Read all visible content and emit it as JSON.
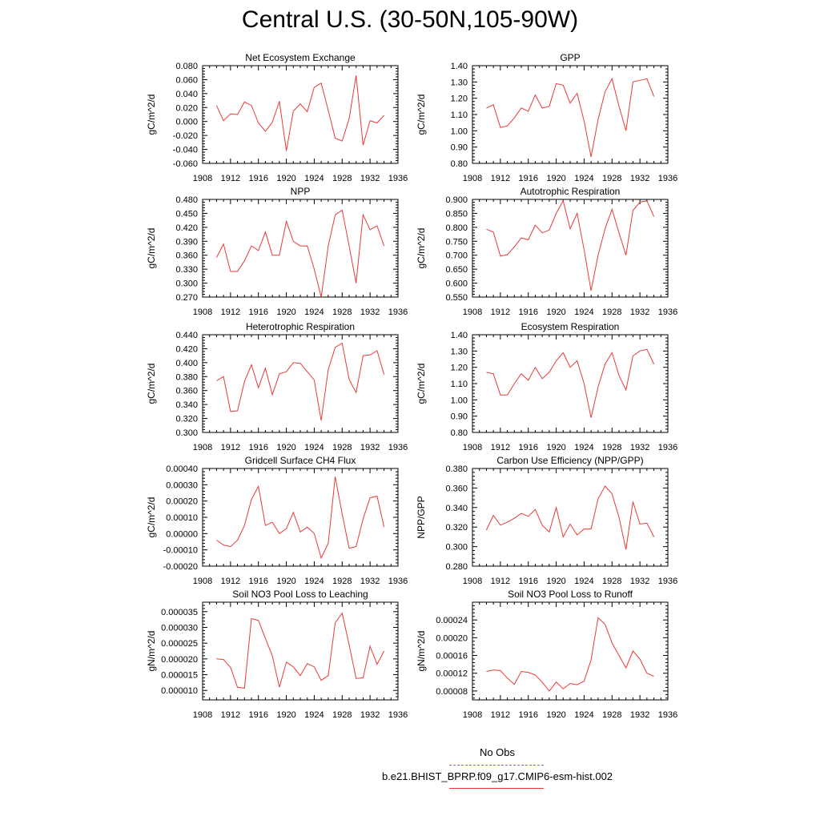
{
  "title": "Central U.S. (30-50N,105-90W)",
  "legend": {
    "obs_label": "No Obs",
    "model_label": "b.e21.BHIST_BPRP.f09_g17.CMIP6-esm-hist.002",
    "obs_color": "#6a6ae8",
    "model_color": "#e83a3a"
  },
  "chart_data": [
    {
      "type": "line",
      "title": "Net Ecosystem Exchange",
      "ylabel": "gC/m^2/d",
      "xlim": [
        1908,
        1936
      ],
      "ylim": [
        -0.06,
        0.08
      ],
      "yticks": [
        "-0.060",
        "-0.040",
        "-0.020",
        "0.000",
        "0.020",
        "0.040",
        "0.060",
        "0.080"
      ],
      "xticks": [
        "1908",
        "1912",
        "1916",
        "1920",
        "1924",
        "1928",
        "1932",
        "1936"
      ],
      "series": [
        {
          "x": [
            1910,
            1911,
            1912,
            1913,
            1914,
            1915,
            1916,
            1917,
            1918,
            1919,
            1920,
            1921,
            1922,
            1923,
            1924,
            1925,
            1926,
            1927,
            1928,
            1929,
            1930,
            1931,
            1932,
            1933,
            1934
          ],
          "values": [
            0.023,
            0.001,
            0.011,
            0.01,
            0.028,
            0.023,
            -0.002,
            -0.014,
            -0.001,
            0.029,
            -0.042,
            0.015,
            0.025,
            0.014,
            0.049,
            0.055,
            0.016,
            -0.024,
            -0.028,
            0.004,
            0.066,
            -0.034,
            0.001,
            -0.002,
            0.009
          ]
        }
      ]
    },
    {
      "type": "line",
      "title": "GPP",
      "ylabel": "gC/m^2/d",
      "xlim": [
        1908,
        1936
      ],
      "ylim": [
        0.8,
        1.4
      ],
      "yticks": [
        "0.80",
        "0.90",
        "1.00",
        "1.10",
        "1.20",
        "1.30",
        "1.40"
      ],
      "xticks": [
        "1908",
        "1912",
        "1916",
        "1920",
        "1924",
        "1928",
        "1932",
        "1936"
      ],
      "series": [
        {
          "x": [
            1910,
            1911,
            1912,
            1913,
            1914,
            1915,
            1916,
            1917,
            1918,
            1919,
            1920,
            1921,
            1922,
            1923,
            1924,
            1925,
            1926,
            1927,
            1928,
            1929,
            1930,
            1931,
            1932,
            1933,
            1934
          ],
          "values": [
            1.14,
            1.16,
            1.02,
            1.03,
            1.08,
            1.14,
            1.12,
            1.22,
            1.14,
            1.15,
            1.29,
            1.28,
            1.17,
            1.23,
            1.06,
            0.84,
            1.07,
            1.24,
            1.32,
            1.15,
            1.0,
            1.3,
            1.31,
            1.32,
            1.21
          ]
        }
      ]
    },
    {
      "type": "line",
      "title": "NPP",
      "ylabel": "gC/m^2/d",
      "xlim": [
        1908,
        1936
      ],
      "ylim": [
        0.27,
        0.48
      ],
      "yticks": [
        "0.270",
        "0.300",
        "0.330",
        "0.360",
        "0.390",
        "0.420",
        "0.450",
        "0.480"
      ],
      "xticks": [
        "1908",
        "1912",
        "1916",
        "1920",
        "1924",
        "1928",
        "1932",
        "1936"
      ],
      "series": [
        {
          "x": [
            1910,
            1911,
            1912,
            1913,
            1914,
            1915,
            1916,
            1917,
            1918,
            1919,
            1920,
            1921,
            1922,
            1923,
            1924,
            1925,
            1926,
            1927,
            1928,
            1929,
            1930,
            1931,
            1932,
            1933,
            1934
          ],
          "values": [
            0.355,
            0.384,
            0.325,
            0.325,
            0.348,
            0.38,
            0.37,
            0.41,
            0.36,
            0.36,
            0.433,
            0.39,
            0.38,
            0.38,
            0.33,
            0.27,
            0.38,
            0.447,
            0.457,
            0.38,
            0.3,
            0.447,
            0.415,
            0.423,
            0.38
          ]
        }
      ]
    },
    {
      "type": "line",
      "title": "Autotrophic Respiration",
      "ylabel": "gC/m^2/d",
      "xlim": [
        1908,
        1936
      ],
      "ylim": [
        0.55,
        0.9
      ],
      "yticks": [
        "0.550",
        "0.600",
        "0.650",
        "0.700",
        "0.750",
        "0.800",
        "0.850",
        "0.900"
      ],
      "xticks": [
        "1908",
        "1912",
        "1916",
        "1920",
        "1924",
        "1928",
        "1932",
        "1936"
      ],
      "series": [
        {
          "x": [
            1910,
            1911,
            1912,
            1913,
            1914,
            1915,
            1916,
            1917,
            1918,
            1919,
            1920,
            1921,
            1922,
            1923,
            1924,
            1925,
            1926,
            1927,
            1928,
            1929,
            1930,
            1931,
            1932,
            1933,
            1934
          ],
          "values": [
            0.793,
            0.783,
            0.697,
            0.702,
            0.73,
            0.762,
            0.755,
            0.808,
            0.78,
            0.79,
            0.85,
            0.895,
            0.795,
            0.85,
            0.72,
            0.573,
            0.7,
            0.795,
            0.865,
            0.78,
            0.7,
            0.86,
            0.89,
            0.895,
            0.838
          ]
        }
      ]
    },
    {
      "type": "line",
      "title": "Heterotrophic Respiration",
      "ylabel": "gC/m^2/d",
      "xlim": [
        1908,
        1936
      ],
      "ylim": [
        0.3,
        0.44
      ],
      "yticks": [
        "0.300",
        "0.320",
        "0.340",
        "0.360",
        "0.380",
        "0.400",
        "0.420",
        "0.440"
      ],
      "xticks": [
        "1908",
        "1912",
        "1916",
        "1920",
        "1924",
        "1928",
        "1932",
        "1936"
      ],
      "series": [
        {
          "x": [
            1910,
            1911,
            1912,
            1913,
            1914,
            1915,
            1916,
            1917,
            1918,
            1919,
            1920,
            1921,
            1922,
            1923,
            1924,
            1925,
            1926,
            1927,
            1928,
            1929,
            1930,
            1931,
            1932,
            1933,
            1934
          ],
          "values": [
            0.374,
            0.38,
            0.33,
            0.331,
            0.373,
            0.397,
            0.364,
            0.392,
            0.354,
            0.384,
            0.387,
            0.4,
            0.399,
            0.387,
            0.375,
            0.317,
            0.39,
            0.422,
            0.428,
            0.376,
            0.357,
            0.41,
            0.411,
            0.417,
            0.383
          ]
        }
      ]
    },
    {
      "type": "line",
      "title": "Ecosystem Respiration",
      "ylabel": "gC/m^2/d",
      "xlim": [
        1908,
        1936
      ],
      "ylim": [
        0.8,
        1.4
      ],
      "yticks": [
        "0.80",
        "0.90",
        "1.00",
        "1.10",
        "1.20",
        "1.30",
        "1.40"
      ],
      "xticks": [
        "1908",
        "1912",
        "1916",
        "1920",
        "1924",
        "1928",
        "1932",
        "1936"
      ],
      "series": [
        {
          "x": [
            1910,
            1911,
            1912,
            1913,
            1914,
            1915,
            1916,
            1917,
            1918,
            1919,
            1920,
            1921,
            1922,
            1923,
            1924,
            1925,
            1926,
            1927,
            1928,
            1929,
            1930,
            1931,
            1932,
            1933,
            1934
          ],
          "values": [
            1.17,
            1.16,
            1.03,
            1.03,
            1.1,
            1.16,
            1.12,
            1.2,
            1.13,
            1.17,
            1.24,
            1.29,
            1.2,
            1.24,
            1.1,
            0.89,
            1.08,
            1.22,
            1.29,
            1.15,
            1.06,
            1.27,
            1.3,
            1.31,
            1.22
          ]
        }
      ]
    },
    {
      "type": "line",
      "title": "Gridcell Surface CH4 Flux",
      "ylabel": "gC/m^2/d",
      "xlim": [
        1908,
        1936
      ],
      "ylim": [
        -0.0002,
        0.0004
      ],
      "yticks": [
        "-0.00020",
        "-0.00010",
        "0.00000",
        "0.00010",
        "0.00020",
        "0.00030",
        "0.00040"
      ],
      "xticks": [
        "1908",
        "1912",
        "1916",
        "1920",
        "1924",
        "1928",
        "1932",
        "1936"
      ],
      "series": [
        {
          "x": [
            1910,
            1911,
            1912,
            1913,
            1914,
            1915,
            1916,
            1917,
            1918,
            1919,
            1920,
            1921,
            1922,
            1923,
            1924,
            1925,
            1926,
            1927,
            1928,
            1929,
            1930,
            1931,
            1932,
            1933,
            1934
          ],
          "values": [
            -4e-05,
            -7e-05,
            -8e-05,
            -4e-05,
            5e-05,
            0.00021,
            0.00029,
            5e-05,
            7e-05,
            0.0,
            3e-05,
            0.00013,
            1e-05,
            4e-05,
            0.0,
            -0.00015,
            -6e-05,
            0.00035,
            0.00012,
            -9e-05,
            -8e-05,
            9e-05,
            0.00022,
            0.00023,
            4e-05
          ]
        }
      ]
    },
    {
      "type": "line",
      "title": "Carbon Use Efficiency (NPP/GPP)",
      "ylabel": "NPP/GPP",
      "xlim": [
        1908,
        1936
      ],
      "ylim": [
        0.28,
        0.38
      ],
      "yticks": [
        "0.280",
        "0.300",
        "0.320",
        "0.340",
        "0.360",
        "0.380"
      ],
      "xticks": [
        "1908",
        "1912",
        "1916",
        "1920",
        "1924",
        "1928",
        "1932",
        "1936"
      ],
      "series": [
        {
          "x": [
            1910,
            1911,
            1912,
            1913,
            1914,
            1915,
            1916,
            1917,
            1918,
            1919,
            1920,
            1921,
            1922,
            1923,
            1924,
            1925,
            1926,
            1927,
            1928,
            1929,
            1930,
            1931,
            1932,
            1933,
            1934
          ],
          "values": [
            0.317,
            0.332,
            0.322,
            0.325,
            0.329,
            0.334,
            0.331,
            0.338,
            0.322,
            0.315,
            0.34,
            0.31,
            0.323,
            0.312,
            0.318,
            0.318,
            0.349,
            0.362,
            0.354,
            0.33,
            0.297,
            0.346,
            0.323,
            0.324,
            0.31
          ]
        }
      ]
    },
    {
      "type": "line",
      "title": "Soil NO3 Pool Loss to Leaching",
      "ylabel": "gN/m^2/d",
      "xlim": [
        1908,
        1936
      ],
      "ylim": [
        7e-06,
        3.8e-05
      ],
      "yticks": [
        "0.000010",
        "0.000015",
        "0.000020",
        "0.000025",
        "0.000030",
        "0.000035"
      ],
      "xticks": [
        "1908",
        "1912",
        "1916",
        "1920",
        "1924",
        "1928",
        "1932",
        "1936"
      ],
      "series": [
        {
          "x": [
            1910,
            1911,
            1912,
            1913,
            1914,
            1915,
            1916,
            1917,
            1918,
            1919,
            1920,
            1921,
            1922,
            1923,
            1924,
            1925,
            1926,
            1927,
            1928,
            1929,
            1930,
            1931,
            1932,
            1933,
            1934
          ],
          "values": [
            2e-05,
            1.98e-05,
            1.73e-05,
            1.1e-05,
            1.07e-05,
            3.28e-05,
            3.22e-05,
            2.65e-05,
            2.1e-05,
            1.1e-05,
            1.9e-05,
            1.75e-05,
            1.47e-05,
            1.85e-05,
            1.75e-05,
            1.32e-05,
            1.47e-05,
            3.15e-05,
            3.45e-05,
            2.45e-05,
            1.38e-05,
            1.4e-05,
            2.4e-05,
            1.83e-05,
            2.25e-05
          ]
        }
      ]
    },
    {
      "type": "line",
      "title": "Soil NO3 Pool Loss to Runoff",
      "ylabel": "gN/m^2/d",
      "xlim": [
        1908,
        1936
      ],
      "ylim": [
        6e-05,
        0.00028
      ],
      "yticks": [
        "0.00008",
        "0.00012",
        "0.00016",
        "0.00020",
        "0.00024"
      ],
      "xticks": [
        "1908",
        "1912",
        "1916",
        "1920",
        "1924",
        "1928",
        "1932",
        "1936"
      ],
      "series": [
        {
          "x": [
            1910,
            1911,
            1912,
            1913,
            1914,
            1915,
            1916,
            1917,
            1918,
            1919,
            1920,
            1921,
            1922,
            1923,
            1924,
            1925,
            1926,
            1927,
            1928,
            1929,
            1930,
            1931,
            1932,
            1933,
            1934
          ],
          "values": [
            0.000124,
            0.000127,
            0.000126,
            0.000109,
            9.5e-05,
            0.000124,
            0.000122,
            0.000116,
            0.0001,
            8e-05,
            0.0001,
            8.5e-05,
            9.7e-05,
            9.4e-05,
            0.000102,
            0.00015,
            0.000245,
            0.00023,
            0.000188,
            0.00016,
            0.000132,
            0.00017,
            0.000152,
            0.00012,
            0.000113
          ]
        }
      ]
    }
  ]
}
